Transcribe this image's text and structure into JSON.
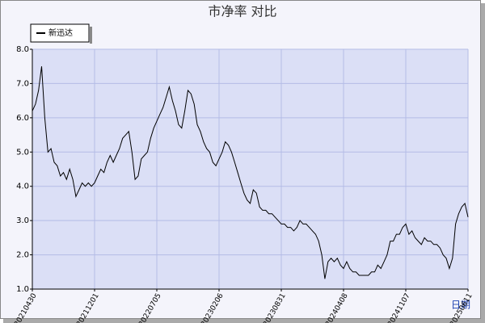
{
  "chart_data": {
    "type": "line",
    "title": "市净率  对比",
    "x_label": "日期",
    "categories": [
      "20210430",
      null,
      null,
      null,
      null,
      null,
      null,
      null,
      null,
      null,
      null,
      null,
      null,
      null,
      null,
      null,
      null,
      null,
      null,
      null,
      "20211201",
      null,
      null,
      null,
      null,
      null,
      null,
      null,
      null,
      null,
      null,
      null,
      null,
      null,
      null,
      null,
      null,
      null,
      null,
      null,
      "20220705",
      null,
      null,
      null,
      null,
      null,
      null,
      null,
      null,
      null,
      null,
      null,
      null,
      null,
      null,
      null,
      null,
      null,
      null,
      null,
      "20230206",
      null,
      null,
      null,
      null,
      null,
      null,
      null,
      null,
      null,
      null,
      null,
      null,
      null,
      null,
      null,
      null,
      null,
      null,
      null,
      "20230831",
      null,
      null,
      null,
      null,
      null,
      null,
      null,
      null,
      null,
      null,
      null,
      null,
      null,
      null,
      null,
      null,
      null,
      null,
      null,
      "20240408",
      null,
      null,
      null,
      null,
      null,
      null,
      null,
      null,
      null,
      null,
      null,
      null,
      null,
      null,
      null,
      null,
      null,
      null,
      null,
      "20241107",
      null,
      null,
      null,
      null,
      null,
      null,
      null,
      null,
      null,
      null,
      null,
      null,
      null,
      null,
      null,
      null,
      null,
      null,
      null,
      "20250611"
    ],
    "series": [
      {
        "name": "新迅达",
        "color": "#000000",
        "values": [
          6.2,
          6.4,
          6.8,
          7.5,
          6.0,
          5.0,
          5.1,
          4.7,
          4.6,
          4.3,
          4.4,
          4.2,
          4.5,
          4.2,
          3.7,
          3.9,
          4.1,
          4.0,
          4.1,
          4.0,
          4.1,
          4.3,
          4.5,
          4.4,
          4.7,
          4.9,
          4.7,
          4.9,
          5.1,
          5.4,
          5.5,
          5.6,
          5.0,
          4.2,
          4.3,
          4.8,
          4.9,
          5.0,
          5.4,
          5.7,
          5.9,
          6.1,
          6.3,
          6.6,
          6.9,
          6.5,
          6.2,
          5.8,
          5.7,
          6.2,
          6.8,
          6.7,
          6.4,
          5.8,
          5.6,
          5.3,
          5.1,
          5.0,
          4.7,
          4.6,
          4.8,
          5.0,
          5.3,
          5.2,
          5.0,
          4.7,
          4.4,
          4.1,
          3.8,
          3.6,
          3.5,
          3.9,
          3.8,
          3.4,
          3.3,
          3.3,
          3.2,
          3.2,
          3.1,
          3.0,
          2.9,
          2.9,
          2.8,
          2.8,
          2.7,
          2.8,
          3.0,
          2.9,
          2.9,
          2.8,
          2.7,
          2.6,
          2.4,
          2.0,
          1.3,
          1.8,
          1.9,
          1.8,
          1.9,
          1.7,
          1.6,
          1.8,
          1.6,
          1.5,
          1.5,
          1.4,
          1.4,
          1.4,
          1.4,
          1.5,
          1.5,
          1.7,
          1.6,
          1.8,
          2.0,
          2.4,
          2.4,
          2.6,
          2.6,
          2.8,
          2.9,
          2.6,
          2.7,
          2.5,
          2.4,
          2.3,
          2.5,
          2.4,
          2.4,
          2.3,
          2.3,
          2.2,
          2.0,
          1.9,
          1.6,
          1.9,
          2.9,
          3.2,
          3.4,
          3.5,
          3.1
        ]
      }
    ],
    "ylim": [
      1,
      8
    ],
    "yticks": [
      {
        "value": 1,
        "label": "1.0"
      },
      {
        "value": 2,
        "label": "2.0"
      },
      {
        "value": 3,
        "label": "3.0"
      },
      {
        "value": 4,
        "label": "4.0"
      },
      {
        "value": 5,
        "label": "5.0"
      },
      {
        "value": 6,
        "label": "6.0"
      },
      {
        "value": 7,
        "label": "7.0"
      },
      {
        "value": 8,
        "label": "8.0"
      }
    ],
    "grid": true
  }
}
